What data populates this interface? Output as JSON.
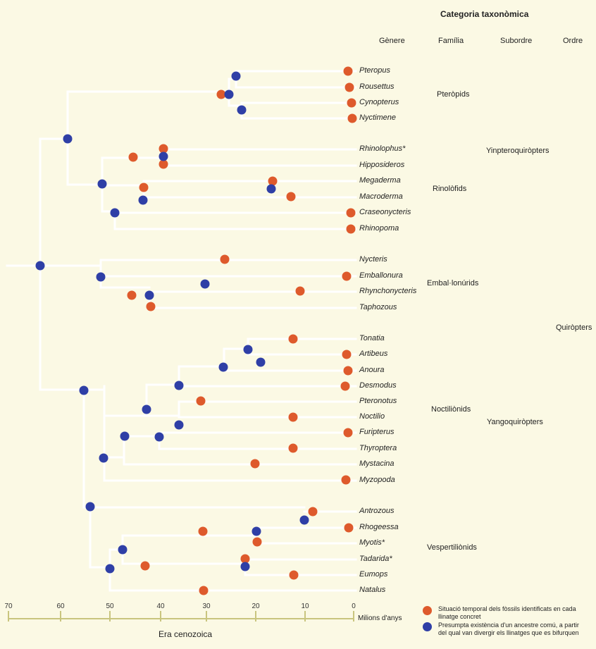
{
  "header": {
    "title": "Categoria taxonòmica",
    "columns": [
      "Gènere",
      "Família",
      "Subordre",
      "Ordre"
    ]
  },
  "genera": [
    "Pteropus",
    "Rousettus",
    "Cynopterus",
    "Nyctimene",
    "Rhinolophus*",
    "Hipposideros",
    "Megaderma",
    "Macroderma",
    "Craseonycteris",
    "Rhinopoma",
    "Nycteris",
    "Emballonura",
    "Rhynchonycteris",
    "Taphozous",
    "Tonatia",
    "Artibeus",
    "Anoura",
    "Desmodus",
    "Pteronotus",
    "Noctilio",
    "Furipterus",
    "Thyroptera",
    "Mystacina",
    "Myzopoda",
    "Antrozous",
    "Rhogeessa",
    "Myotis*",
    "Tadarida*",
    "Eumops",
    "Natalus"
  ],
  "families": [
    "Pteròpids",
    "Rinolòfids",
    "Embal·lonúrids",
    "Noctiliònids",
    "Vespertiliònids"
  ],
  "suborders": [
    "Yinpteroquiròpters",
    "Yangoquiròpters"
  ],
  "order": "Quiròpters",
  "axis": {
    "ticks": [
      "70",
      "60",
      "50",
      "40",
      "30",
      "20",
      "10",
      "0"
    ],
    "unit_label": "Milions d'anys",
    "era_label": "Era cenozoica"
  },
  "legend": {
    "fossil": "Situació temporal dels fòssils identificats en cada llinatge concret",
    "ancestor": "Presumpta existència d'un ancestre comú, a partir del qual van divergir els llinatges que es bifurquen"
  },
  "colors": {
    "background": "#fbf9e4",
    "fossil": "#de5a2c",
    "ancestor": "#2f3fa6",
    "branch": "#ffffff",
    "axis": "#c9c57e"
  }
}
